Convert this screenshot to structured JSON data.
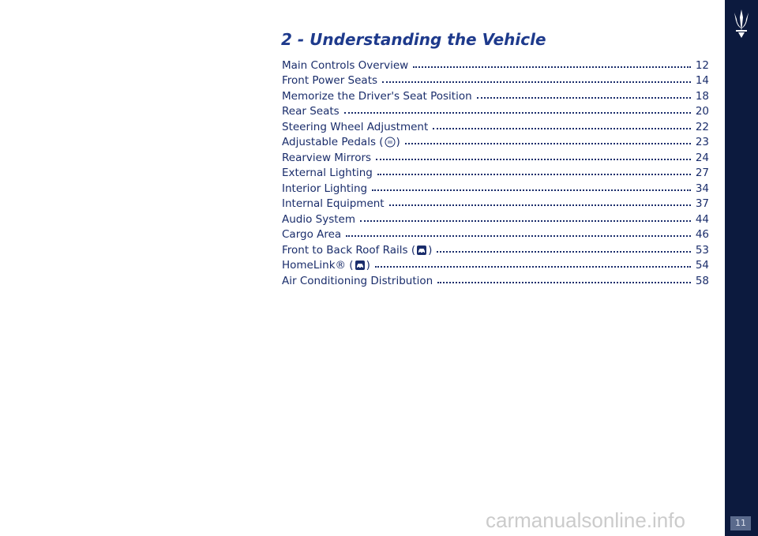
{
  "header": {
    "title": "2 - Understanding the Vehicle"
  },
  "toc": {
    "entries": [
      {
        "label": "Main Controls Overview",
        "page": "12"
      },
      {
        "label": "Front Power Seats",
        "page": "14"
      },
      {
        "label": "Memorize the Driver's Seat Position",
        "page": "18"
      },
      {
        "label": "Rear Seats",
        "page": "20"
      },
      {
        "label": "Steering Wheel Adjustment",
        "page": "22"
      },
      {
        "label": "Adjustable Pedals (",
        "after": ")",
        "page": "23"
      },
      {
        "label": "Rearview Mirrors",
        "page": "24"
      },
      {
        "label": "External Lighting",
        "page": "27"
      },
      {
        "label": "Interior Lighting",
        "page": "34"
      },
      {
        "label": "Internal Equipment",
        "page": "37"
      },
      {
        "label": "Audio System",
        "page": "44"
      },
      {
        "label": "Cargo Area",
        "page": "46"
      },
      {
        "label": "Front to Back Roof Rails (",
        "after": ")",
        "page": "53"
      },
      {
        "label": "HomeLink® (",
        "after": ")",
        "page": "54"
      },
      {
        "label": "Air Conditioning Distribution",
        "page": "58"
      }
    ]
  },
  "sidebar": {
    "page_number": "11"
  },
  "watermark": "carmanualsonline.info"
}
